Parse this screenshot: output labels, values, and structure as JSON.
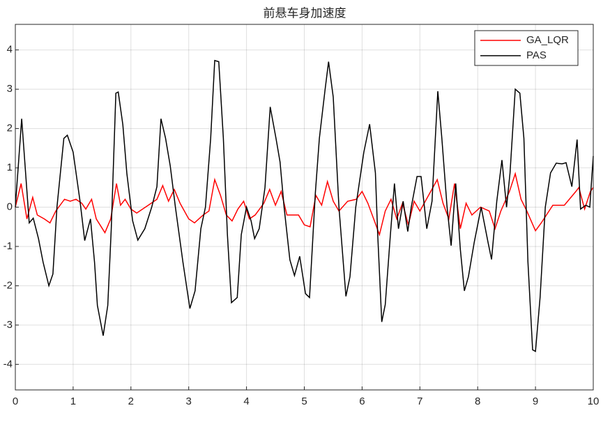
{
  "chart_data": {
    "type": "line",
    "title": "前悬车身加速度",
    "xlim": [
      0,
      10
    ],
    "ylim": [
      -4.65,
      4.65
    ],
    "xticks": [
      0,
      1,
      2,
      3,
      4,
      5,
      6,
      7,
      8,
      9,
      10
    ],
    "yticks": [
      -4,
      -3,
      -2,
      -1,
      0,
      1,
      2,
      3,
      4
    ],
    "grid": true,
    "legend": "upper-right",
    "series": [
      {
        "name": "GA_LQR",
        "color": "#ff0000",
        "x": [
          0,
          0.1,
          0.2,
          0.3,
          0.38,
          0.5,
          0.6,
          0.7,
          0.85,
          0.95,
          1.05,
          1.15,
          1.22,
          1.32,
          1.4,
          1.55,
          1.65,
          1.75,
          1.82,
          1.9,
          2.0,
          2.1,
          2.3,
          2.45,
          2.55,
          2.65,
          2.75,
          2.85,
          3.0,
          3.1,
          3.25,
          3.35,
          3.45,
          3.55,
          3.65,
          3.75,
          3.85,
          3.95,
          4.05,
          4.15,
          4.3,
          4.4,
          4.5,
          4.6,
          4.7,
          4.9,
          5.0,
          5.1,
          5.2,
          5.3,
          5.4,
          5.5,
          5.6,
          5.75,
          5.9,
          6.0,
          6.1,
          6.2,
          6.3,
          6.4,
          6.5,
          6.6,
          6.7,
          6.8,
          6.9,
          7.0,
          7.15,
          7.3,
          7.4,
          7.5,
          7.6,
          7.7,
          7.8,
          7.9,
          8.05,
          8.2,
          8.3,
          8.4,
          8.55,
          8.65,
          8.75,
          8.85,
          9.0,
          9.1,
          9.3,
          9.5,
          9.7,
          9.75,
          9.85,
          9.95,
          10
        ],
        "values": [
          0,
          0.6,
          -0.3,
          0.25,
          -0.2,
          -0.3,
          -0.4,
          -0.1,
          0.2,
          0.15,
          0.2,
          0.1,
          -0.05,
          0.2,
          -0.3,
          -0.65,
          -0.3,
          0.6,
          0.05,
          0.2,
          -0.05,
          -0.15,
          0.05,
          0.2,
          0.55,
          0.15,
          0.45,
          0.1,
          -0.3,
          -0.4,
          -0.2,
          -0.1,
          0.7,
          0.3,
          -0.2,
          -0.35,
          -0.05,
          0.15,
          -0.3,
          -0.2,
          0.1,
          0.45,
          0.05,
          0.4,
          -0.2,
          -0.2,
          -0.45,
          -0.5,
          0.3,
          0.05,
          0.65,
          0.15,
          -0.1,
          0.15,
          0.2,
          0.4,
          0.1,
          -0.3,
          -0.7,
          -0.1,
          0.2,
          -0.3,
          0.1,
          -0.45,
          0.15,
          -0.1,
          0.3,
          0.7,
          0.1,
          -0.3,
          0.6,
          -0.55,
          0.1,
          -0.2,
          0,
          -0.1,
          -0.55,
          -0.1,
          0.4,
          0.85,
          0.2,
          -0.1,
          -0.6,
          -0.4,
          0.05,
          0.05,
          0.4,
          0.5,
          -0.05,
          0.4,
          0.5
        ]
      },
      {
        "name": "PAS",
        "color": "#000000",
        "x": [
          0,
          0.11,
          0.24,
          0.31,
          0.4,
          0.48,
          0.58,
          0.65,
          0.72,
          0.84,
          0.9,
          1.0,
          1.12,
          1.2,
          1.3,
          1.37,
          1.42,
          1.52,
          1.6,
          1.66,
          1.74,
          1.78,
          1.86,
          1.93,
          2.03,
          2.12,
          2.24,
          2.36,
          2.45,
          2.52,
          2.6,
          2.68,
          2.77,
          2.9,
          3.02,
          3.11,
          3.21,
          3.29,
          3.38,
          3.45,
          3.52,
          3.6,
          3.67,
          3.74,
          3.84,
          3.91,
          4.0,
          4.08,
          4.14,
          4.22,
          4.32,
          4.41,
          4.51,
          4.58,
          4.65,
          4.75,
          4.83,
          4.92,
          5.02,
          5.09,
          5.19,
          5.26,
          5.36,
          5.42,
          5.5,
          5.6,
          5.72,
          5.79,
          5.89,
          6.03,
          6.13,
          6.23,
          6.27,
          6.34,
          6.4,
          6.49,
          6.56,
          6.63,
          6.71,
          6.79,
          6.85,
          6.95,
          7.02,
          7.12,
          7.21,
          7.31,
          7.38,
          7.47,
          7.54,
          7.62,
          7.7,
          7.77,
          7.84,
          7.94,
          8.06,
          8.18,
          8.24,
          8.33,
          8.42,
          8.5,
          8.56,
          8.65,
          8.73,
          8.8,
          8.87,
          8.95,
          9.0,
          9.08,
          9.17,
          9.26,
          9.36,
          9.46,
          9.53,
          9.63,
          9.72,
          9.78,
          9.87,
          9.94,
          10
        ],
        "values": [
          0,
          2.25,
          -0.4,
          -0.28,
          -0.8,
          -1.4,
          -2.0,
          -1.7,
          0,
          1.75,
          1.83,
          1.4,
          0.15,
          -0.85,
          -0.3,
          -1.4,
          -2.5,
          -3.27,
          -2.5,
          -0.55,
          2.9,
          2.93,
          2.1,
          0.85,
          -0.35,
          -0.84,
          -0.55,
          0,
          0.52,
          2.25,
          1.75,
          1.05,
          0,
          -1.4,
          -2.58,
          -2.13,
          -0.55,
          0,
          1.75,
          3.73,
          3.7,
          1.75,
          -0.7,
          -2.43,
          -2.3,
          -0.7,
          0,
          -0.35,
          -0.8,
          -0.55,
          0.5,
          2.55,
          1.75,
          1.15,
          0,
          -1.34,
          -1.74,
          -1.25,
          -2.2,
          -2.3,
          0.35,
          1.75,
          2.99,
          3.7,
          2.8,
          0,
          -2.27,
          -1.77,
          0,
          1.4,
          2.11,
          0.87,
          -0.7,
          -2.92,
          -2.48,
          -0.7,
          0.6,
          -0.55,
          0.15,
          -0.62,
          0,
          0.78,
          0.78,
          -0.55,
          0.15,
          2.95,
          1.75,
          0,
          -0.98,
          0.6,
          -1.07,
          -2.13,
          -1.77,
          -0.9,
          0,
          -0.9,
          -1.33,
          0.15,
          1.2,
          0,
          0.87,
          3.0,
          2.9,
          1.75,
          -1.4,
          -3.63,
          -3.67,
          -2.3,
          0,
          0.87,
          1.12,
          1.1,
          1.13,
          0.52,
          1.72,
          -0.05,
          0.05,
          0,
          1.3
        ]
      }
    ]
  }
}
